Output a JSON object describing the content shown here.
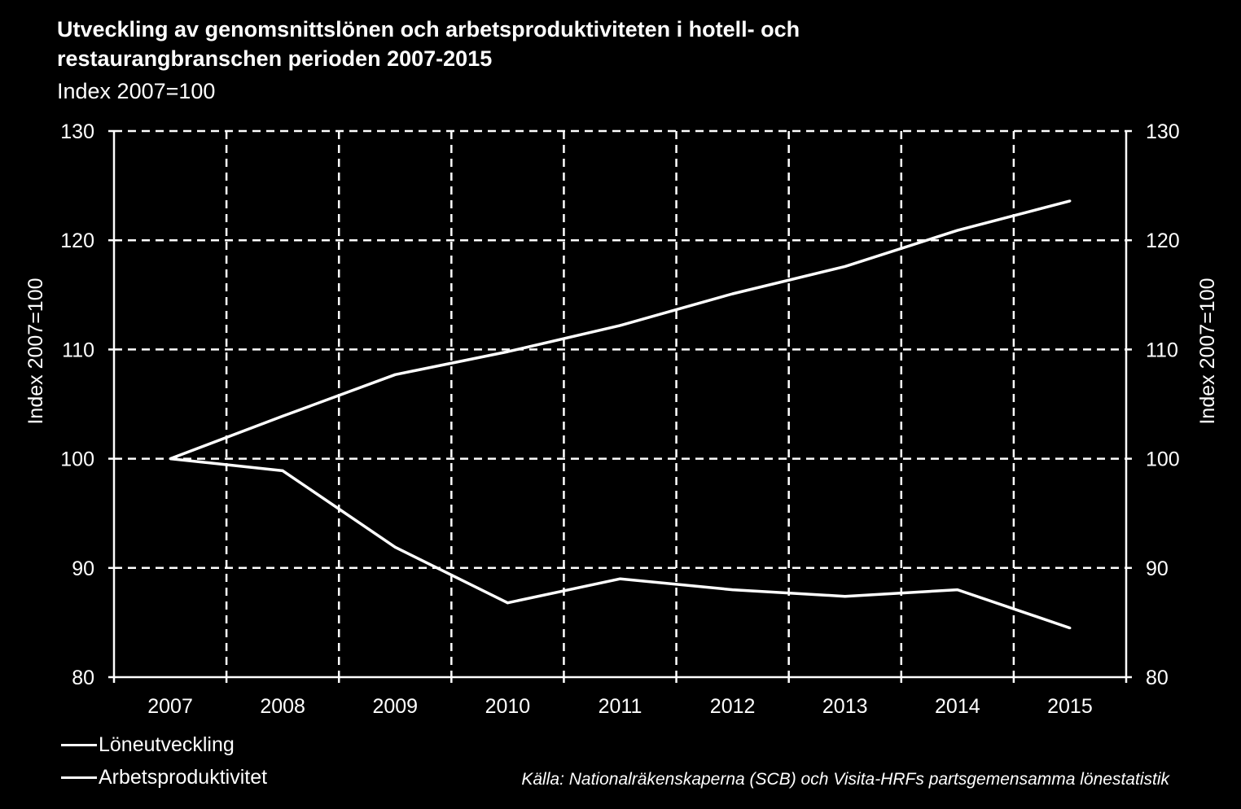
{
  "title_line1": "Utveckling av genomsnittslönen och arbetsproduktiviteten i hotell- och",
  "title_line2": "restaurangbranschen perioden 2007-2015",
  "subtitle": "Index 2007=100",
  "source": "Källa: Nationalräkenskaperna (SCB) och Visita-HRFs partsgemensamma lönestatistik",
  "colors": {
    "background": "#000000",
    "foreground": "#ffffff"
  },
  "chart_data": {
    "type": "line",
    "categories": [
      "2007",
      "2008",
      "2009",
      "2010",
      "2011",
      "2012",
      "2013",
      "2014",
      "2015"
    ],
    "series": [
      {
        "name": "Löneutveckling",
        "values": [
          100,
          103.9,
          107.7,
          109.8,
          112.2,
          115.1,
          117.6,
          120.9,
          123.6
        ]
      },
      {
        "name": "Arbetsproduktivitet",
        "values": [
          100,
          98.9,
          91.9,
          86.8,
          89.0,
          88.0,
          87.4,
          88.0,
          84.5
        ]
      }
    ],
    "ylabel_left": "Index 2007=100",
    "ylabel_right": "Index 2007=100",
    "ylim": [
      80,
      130
    ],
    "yticks": [
      "80",
      "90",
      "100",
      "110",
      "120",
      "130"
    ],
    "grid": "dashed",
    "legend_position": "bottom-left"
  }
}
